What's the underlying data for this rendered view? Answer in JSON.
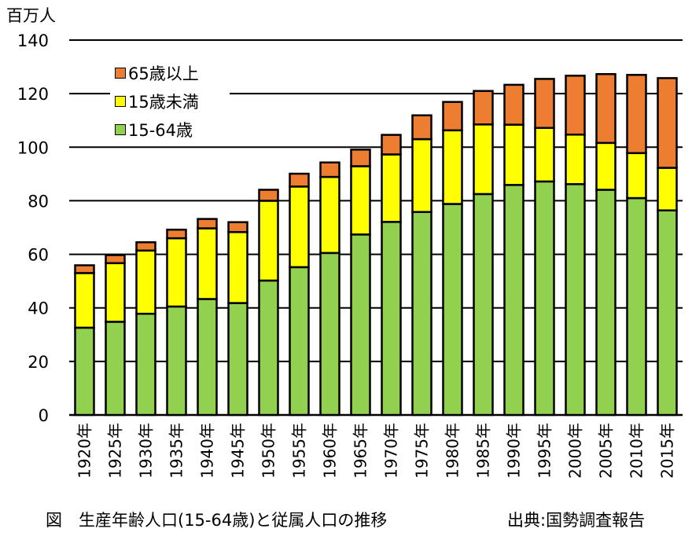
{
  "unit_label": "百万人",
  "caption_left": "図　生産年齢人口(15-64歳)と従属人口の推移",
  "caption_right": "出典:国勢調査報告",
  "chart_data": {
    "type": "bar",
    "stacked": true,
    "title": "生産年齢人口(15-64歳)と従属人口の推移",
    "ylabel": "百万人",
    "ylim": [
      0,
      140
    ],
    "yticks": [
      0,
      20,
      40,
      60,
      80,
      100,
      120,
      140
    ],
    "grid": true,
    "legend_position": "top-left",
    "categories": [
      "1920年",
      "1925年",
      "1930年",
      "1935年",
      "1940年",
      "1945年",
      "1950年",
      "1955年",
      "1960年",
      "1965年",
      "1970年",
      "1975年",
      "1980年",
      "1985年",
      "1990年",
      "1995年",
      "2000年",
      "2005年",
      "2010年",
      "2015年"
    ],
    "series": [
      {
        "name": "15-64歳",
        "color": "#92d050",
        "values": [
          32.6,
          34.8,
          37.8,
          40.5,
          43.3,
          41.8,
          50.2,
          55.2,
          60.5,
          67.4,
          72.1,
          75.8,
          78.8,
          82.5,
          85.9,
          87.2,
          86.2,
          84.1,
          81.0,
          76.4
        ]
      },
      {
        "name": "15歳未満",
        "color": "#ffff00",
        "values": [
          20.4,
          21.9,
          23.6,
          25.5,
          26.4,
          26.5,
          29.8,
          30.1,
          28.4,
          25.5,
          25.2,
          27.2,
          27.5,
          26.0,
          22.5,
          20.0,
          18.5,
          17.5,
          16.8,
          15.9
        ]
      },
      {
        "name": "65歳以上",
        "color": "#ed7d31",
        "values": [
          2.9,
          3.0,
          3.1,
          3.2,
          3.5,
          3.7,
          4.1,
          4.8,
          5.4,
          6.2,
          7.3,
          8.9,
          10.6,
          12.5,
          14.9,
          18.3,
          22.0,
          25.7,
          29.2,
          33.5
        ]
      }
    ],
    "legend": [
      "65歳以上",
      "15歳未満",
      "15-64歳"
    ]
  }
}
